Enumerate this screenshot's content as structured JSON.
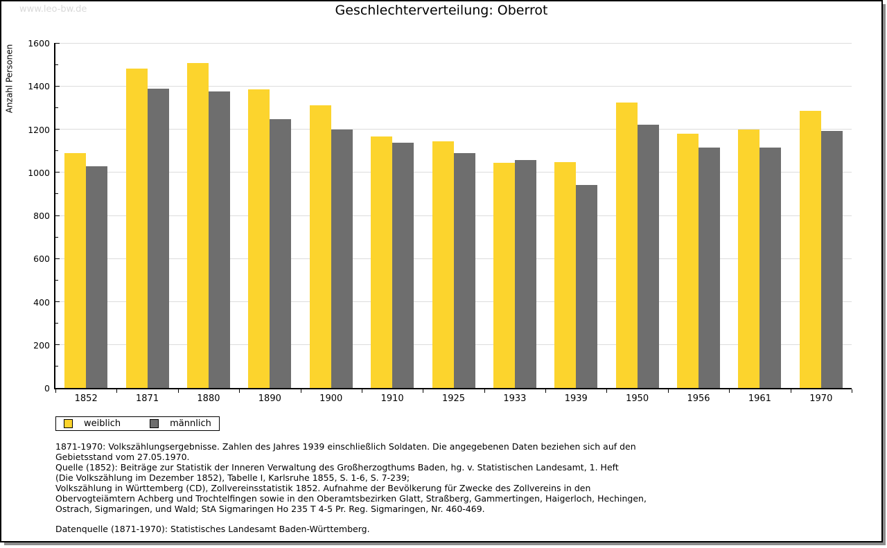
{
  "watermark": "www.leo-bw.de",
  "chart_data": {
    "type": "bar",
    "title": "Geschlechterverteilung: Oberrot",
    "ylabel": "Anzahl Personen",
    "xlabel": "",
    "ylim": [
      0,
      1600
    ],
    "ytick_major": 200,
    "ytick_minor": 100,
    "grid": "horizontal",
    "legend_position": "bottom-left",
    "categories": [
      "1852",
      "1871",
      "1880",
      "1890",
      "1900",
      "1910",
      "1925",
      "1933",
      "1939",
      "1950",
      "1956",
      "1961",
      "1970"
    ],
    "series": [
      {
        "name": "weiblich",
        "color": "#FCD42D",
        "values": [
          1090,
          1482,
          1506,
          1386,
          1312,
          1167,
          1143,
          1045,
          1048,
          1323,
          1180,
          1200,
          1285
        ]
      },
      {
        "name": "männlich",
        "color": "#6E6E6E",
        "values": [
          1027,
          1387,
          1374,
          1247,
          1197,
          1138,
          1090,
          1056,
          940,
          1220,
          1115,
          1115,
          1193
        ]
      }
    ]
  },
  "footnotes": {
    "lines": [
      "1871-1970: Volkszählungsergebnisse. Zahlen des Jahres 1939 einschließlich Soldaten. Die angegebenen Daten beziehen sich auf den",
      "Gebietsstand vom 27.05.1970.",
      "Quelle (1852): Beiträge zur Statistik der Inneren Verwaltung des Großherzogthums Baden, hg. v. Statistischen Landesamt, 1. Heft",
      "(Die Volkszählung im Dezember 1852), Tabelle I, Karlsruhe 1855, S. 1-6, S. 7-239;",
      "Volkszählung in Württemberg (CD), Zollvereinsstatistik 1852. Aufnahme der Bevölkerung für Zwecke des Zollvereins in den",
      "Obervogteiämtern Achberg und Trochtelfingen sowie in den Oberamtsbezirken Glatt, Straßberg, Gammertingen, Haigerloch, Hechingen,",
      "Ostrach, Sigmaringen, und Wald; StA Sigmaringen Ho 235 T 4-5 Pr. Reg. Sigmaringen, Nr. 460-469."
    ],
    "datasource": "Datenquelle (1871-1970): Statistisches Landesamt Baden-Württemberg."
  }
}
